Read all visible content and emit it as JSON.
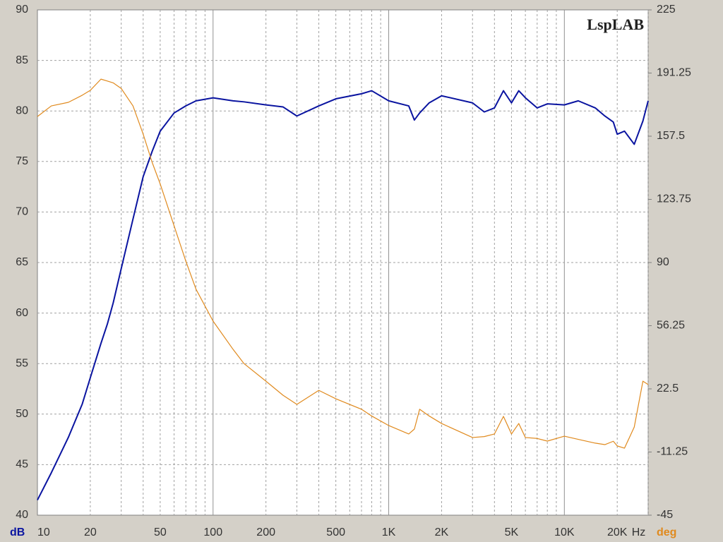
{
  "chart_data": {
    "type": "line",
    "logo": "LspLAB",
    "y_unit": "dB",
    "y2_unit": "deg",
    "x_unit": "Hz",
    "xscale": "log",
    "grid": true,
    "xlim": [
      10,
      30000
    ],
    "xticks": [
      10,
      20,
      50,
      100,
      200,
      500,
      {
        "value": 1000,
        "label": "1K"
      },
      {
        "value": 2000,
        "label": "2K"
      },
      {
        "value": 5000,
        "label": "5K"
      },
      {
        "value": 10000,
        "label": "10K"
      },
      {
        "value": 20000,
        "label": "20K"
      }
    ],
    "xgrid": [
      30,
      40,
      60,
      70,
      80,
      90,
      300,
      400,
      600,
      700,
      800,
      900,
      3000,
      4000,
      6000,
      7000,
      8000,
      9000,
      30000
    ],
    "ylim": [
      40,
      90
    ],
    "yticks": [
      40,
      45,
      50,
      55,
      60,
      65,
      70,
      75,
      80,
      85,
      90
    ],
    "y2lim": [
      -45,
      225
    ],
    "y2ticks": [
      -45,
      -11.25,
      22.5,
      56.25,
      90,
      123.75,
      157.5,
      191.25,
      225
    ],
    "x": [
      10,
      12,
      15,
      18,
      20,
      23,
      25,
      27,
      30,
      35,
      40,
      45,
      50,
      60,
      70,
      80,
      100,
      130,
      150,
      200,
      250,
      300,
      400,
      500,
      700,
      800,
      1000,
      1300,
      1400,
      1500,
      1700,
      2000,
      3000,
      3500,
      4000,
      4500,
      5000,
      5500,
      6000,
      7000,
      8000,
      10000,
      12000,
      15000,
      17000,
      19000,
      20000,
      22000,
      25000,
      28000,
      30000
    ],
    "series": [
      {
        "name": "dB",
        "color": "#0a14a0",
        "values": [
          41.5,
          44.2,
          47.7,
          51,
          53.6,
          57,
          58.9,
          61,
          64.4,
          69.3,
          73.5,
          76,
          78,
          79.8,
          80.5,
          81,
          81.3,
          81,
          80.9,
          80.6,
          80.4,
          79.5,
          80.5,
          81.2,
          81.7,
          82,
          81,
          80.5,
          79.1,
          79.8,
          80.8,
          81.5,
          80.8,
          79.9,
          80.3,
          82,
          80.8,
          82,
          81.3,
          80.3,
          80.7,
          80.6,
          81,
          80.3,
          79.5,
          78.9,
          77.7,
          78,
          76.7,
          79,
          81
        ]
      },
      {
        "name": "deg",
        "color": "#e08a1e",
        "axis": "y2",
        "values": [
          168,
          173.7,
          175.6,
          179.4,
          182,
          188,
          187,
          186,
          183,
          173.7,
          158.6,
          143.5,
          132,
          109.6,
          90.7,
          75.7,
          58.7,
          43.6,
          36,
          26.6,
          19.1,
          14.2,
          21.7,
          17.2,
          11.6,
          8,
          2.9,
          -1.6,
          1,
          11.6,
          8,
          4,
          -3.5,
          -3,
          -1.6,
          7.8,
          -1.6,
          4,
          -3.5,
          -4,
          -5.4,
          -2.8,
          -4.5,
          -6.5,
          -7.3,
          -5.5,
          -8,
          -9.2,
          2.1,
          26.6,
          24.8
        ]
      }
    ]
  }
}
